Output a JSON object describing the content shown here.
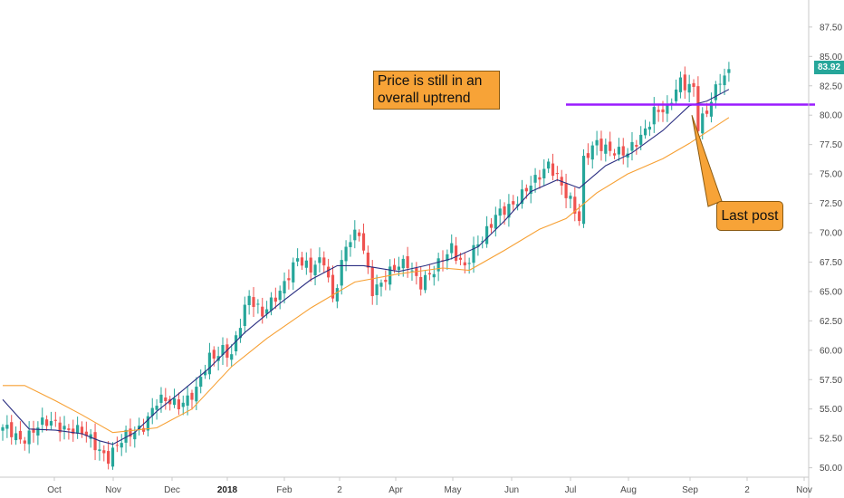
{
  "chart_data": {
    "type": "candlestick",
    "y_axis": {
      "ticks": [
        "87.50",
        "85.00",
        "82.50",
        "80.00",
        "77.50",
        "75.00",
        "72.50",
        "70.00",
        "67.50",
        "65.00",
        "62.50",
        "60.00",
        "57.50",
        "55.00",
        "52.50",
        "50.00"
      ],
      "ylim": [
        49.2,
        89.8
      ],
      "position": "right"
    },
    "x_axis": {
      "ticks": [
        {
          "label": "Oct",
          "bold": false
        },
        {
          "label": "Nov",
          "bold": false
        },
        {
          "label": "Dec",
          "bold": false
        },
        {
          "label": "2018",
          "bold": true
        },
        {
          "label": "Feb",
          "bold": false
        },
        {
          "label": "2",
          "bold": false
        },
        {
          "label": "Apr",
          "bold": false
        },
        {
          "label": "May",
          "bold": false
        },
        {
          "label": "Jun",
          "bold": false
        },
        {
          "label": "Jul",
          "bold": false
        },
        {
          "label": "Aug",
          "bold": false
        },
        {
          "label": "Sep",
          "bold": false
        },
        {
          "label": "2",
          "bold": false
        },
        {
          "label": "Nov",
          "bold": false
        }
      ]
    },
    "close_path": [
      [
        0,
        53.2
      ],
      [
        4,
        52.5
      ],
      [
        8,
        53.5
      ],
      [
        12,
        53.8
      ],
      [
        16,
        53.3
      ],
      [
        20,
        52.3
      ],
      [
        24,
        51.0
      ],
      [
        28,
        52.5
      ],
      [
        32,
        53.8
      ],
      [
        35,
        55.5
      ],
      [
        40,
        55.6
      ],
      [
        44,
        56.4
      ],
      [
        47,
        59.3
      ],
      [
        50,
        60.3
      ],
      [
        52,
        59.5
      ],
      [
        56,
        64.6
      ],
      [
        59,
        63.4
      ],
      [
        63,
        64.6
      ],
      [
        67,
        68.2
      ],
      [
        70,
        66.8
      ],
      [
        73,
        67.5
      ],
      [
        75,
        64.5
      ],
      [
        78,
        69.0
      ],
      [
        81,
        69.8
      ],
      [
        84,
        65.3
      ],
      [
        88,
        66.5
      ],
      [
        92,
        67.5
      ],
      [
        95,
        65.8
      ],
      [
        98,
        66.5
      ],
      [
        102,
        69.0
      ],
      [
        105,
        67.0
      ],
      [
        109,
        69.5
      ],
      [
        112,
        71.8
      ],
      [
        116,
        72.0
      ],
      [
        120,
        74.5
      ],
      [
        124,
        75.5
      ],
      [
        127,
        74.0
      ],
      [
        129,
        73.0
      ],
      [
        131,
        71.2
      ],
      [
        132,
        76.0
      ],
      [
        135,
        77.5
      ],
      [
        138,
        77.3
      ],
      [
        142,
        76.5
      ],
      [
        145,
        78.2
      ],
      [
        148,
        80.5
      ],
      [
        151,
        80.2
      ],
      [
        154,
        83.0
      ],
      [
        157,
        82.5
      ],
      [
        158,
        79.0
      ],
      [
        160,
        80.0
      ],
      [
        163,
        83.2
      ],
      [
        165,
        83.92
      ]
    ],
    "series": [
      {
        "name": "",
        "color": "#2b2f82",
        "points": [
          [
            0,
            55.8
          ],
          [
            6,
            53.3
          ],
          [
            12,
            53.2
          ],
          [
            18,
            52.9
          ],
          [
            22,
            52.3
          ],
          [
            25,
            52.0
          ],
          [
            30,
            53.0
          ],
          [
            35,
            54.8
          ],
          [
            40,
            56.3
          ],
          [
            47,
            58.5
          ],
          [
            55,
            61.5
          ],
          [
            63,
            64.0
          ],
          [
            70,
            66.0
          ],
          [
            76,
            67.2
          ],
          [
            82,
            67.2
          ],
          [
            90,
            66.7
          ],
          [
            96,
            67.2
          ],
          [
            102,
            67.8
          ],
          [
            108,
            68.8
          ],
          [
            114,
            71.0
          ],
          [
            120,
            73.5
          ],
          [
            126,
            74.5
          ],
          [
            131,
            73.8
          ],
          [
            137,
            75.7
          ],
          [
            143,
            76.8
          ],
          [
            150,
            78.7
          ],
          [
            156,
            80.8
          ],
          [
            160,
            81.2
          ],
          [
            165,
            82.2
          ]
        ]
      },
      {
        "name": "",
        "color": "#f7a033",
        "points": [
          [
            0,
            57.0
          ],
          [
            5,
            57.0
          ],
          [
            12,
            55.7
          ],
          [
            18,
            54.5
          ],
          [
            25,
            53.0
          ],
          [
            35,
            53.4
          ],
          [
            43,
            55.0
          ],
          [
            52,
            58.6
          ],
          [
            60,
            61.0
          ],
          [
            70,
            63.6
          ],
          [
            80,
            65.8
          ],
          [
            90,
            66.5
          ],
          [
            100,
            67.0
          ],
          [
            106,
            66.8
          ],
          [
            114,
            68.5
          ],
          [
            122,
            70.3
          ],
          [
            128,
            71.2
          ],
          [
            135,
            73.4
          ],
          [
            142,
            75.0
          ],
          [
            150,
            76.3
          ],
          [
            156,
            77.6
          ],
          [
            165,
            79.8
          ]
        ]
      }
    ],
    "last_price": "83.92",
    "annotations": [
      {
        "kind": "horizontal-line",
        "y": 80.9,
        "color": "#9a1cff"
      },
      {
        "kind": "callout",
        "text": "Price is still in an overall uptrend"
      },
      {
        "kind": "callout",
        "text": "Last post",
        "points_to": 80.0
      }
    ],
    "grid": false
  },
  "colors": {
    "up": "#26a69a",
    "down": "#ef5350",
    "axis": "#c9c9c9"
  }
}
